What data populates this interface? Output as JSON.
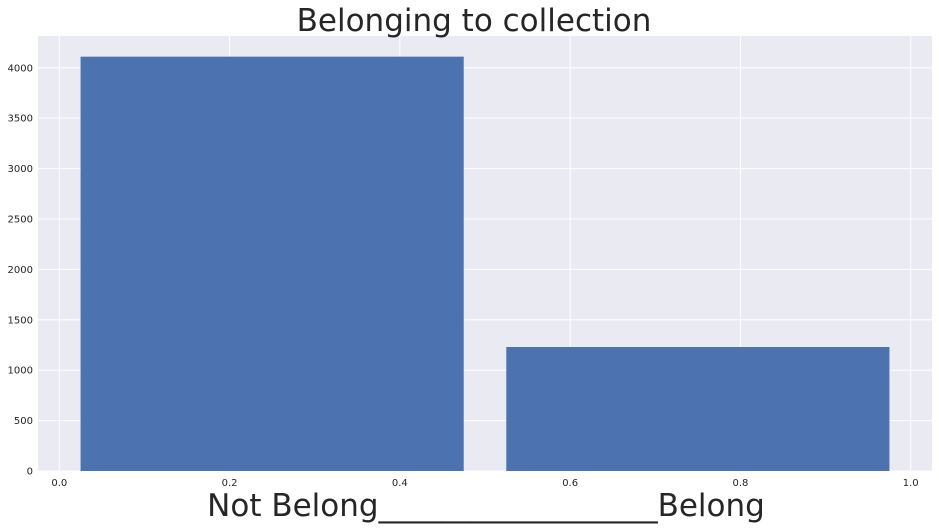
{
  "chart_data": {
    "type": "bar",
    "title": "Belonging to collection",
    "xlabel": "Not Belong__________________Belong",
    "ylabel": "",
    "x": [
      0.25,
      0.75
    ],
    "bar_width": 0.45,
    "values": [
      4110,
      1230
    ],
    "xlim": [
      -0.025,
      1.025
    ],
    "ylim": [
      0,
      4315
    ],
    "xticks": [
      0.0,
      0.2,
      0.4,
      0.6,
      0.8,
      1.0
    ],
    "xtick_labels": [
      "0.0",
      "0.2",
      "0.4",
      "0.6",
      "0.8",
      "1.0"
    ],
    "yticks": [
      0,
      500,
      1000,
      1500,
      2000,
      2500,
      3000,
      3500,
      4000
    ],
    "ytick_labels": [
      "0",
      "500",
      "1000",
      "1500",
      "2000",
      "2500",
      "3000",
      "3500",
      "4000"
    ],
    "grid": true,
    "bar_color": "#4c72b0",
    "background_color": "#eaeaf2",
    "grid_color": "#ffffff"
  }
}
